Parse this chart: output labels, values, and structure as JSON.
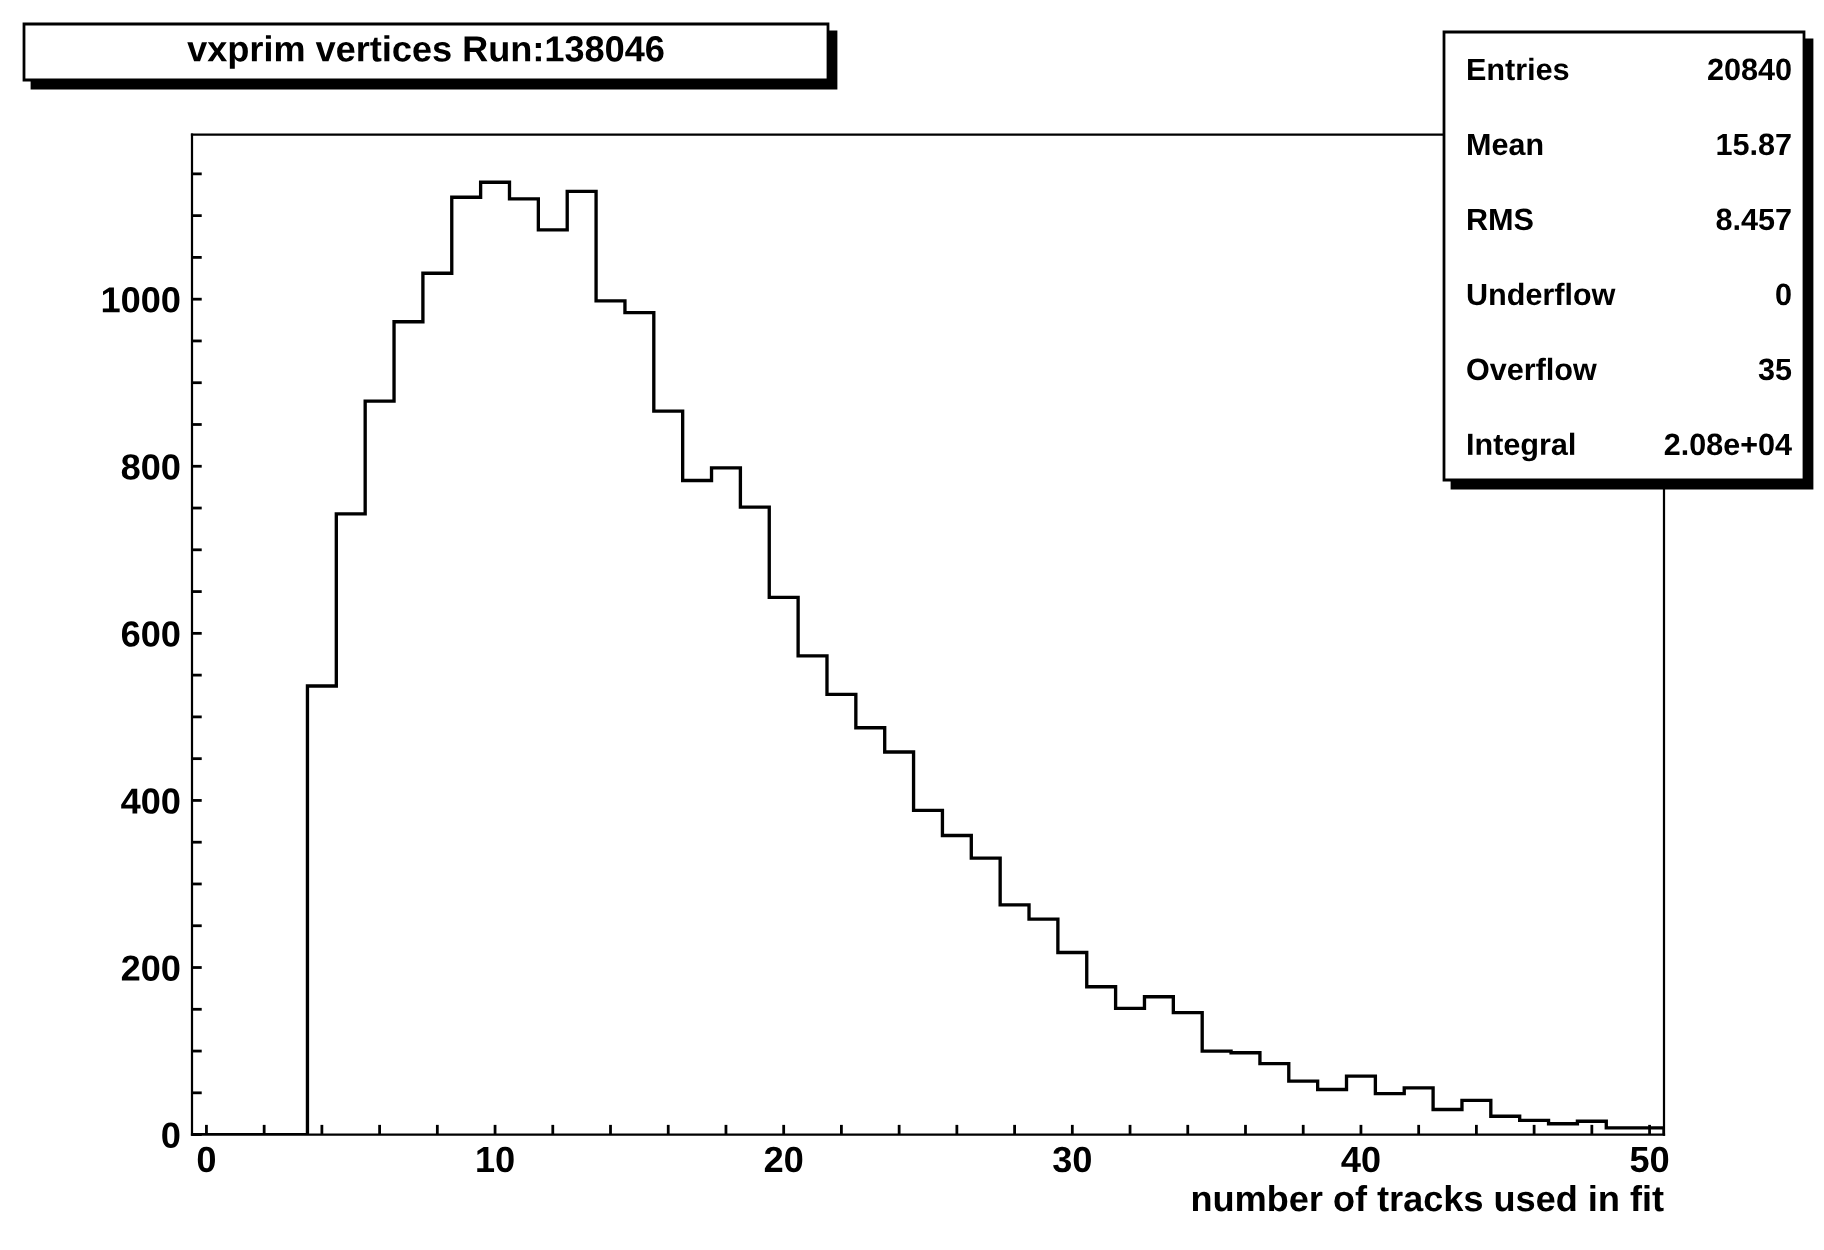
{
  "chart_data": {
    "type": "histogram",
    "title": "vxprim vertices Run:138046",
    "xlabel": "number of tracks used in fit",
    "bins": [
      -0.5,
      0.5,
      1.5,
      2.5,
      3.5,
      4.5,
      5.5,
      6.5,
      7.5,
      8.5,
      9.5,
      10.5,
      11.5,
      12.5,
      13.5,
      14.5,
      15.5,
      16.5,
      17.5,
      18.5,
      19.5,
      20.5,
      21.5,
      22.5,
      23.5,
      24.5,
      25.5,
      26.5,
      27.5,
      28.5,
      29.5,
      30.5,
      31.5,
      32.5,
      33.5,
      34.5,
      35.5,
      36.5,
      37.5,
      38.5,
      39.5,
      40.5,
      41.5,
      42.5,
      43.5,
      44.5,
      45.5,
      46.5,
      47.5,
      48.5,
      49.5,
      50.5
    ],
    "values": [
      0,
      0,
      0,
      0,
      537,
      743,
      878,
      973,
      1031,
      1122,
      1140,
      1120,
      1083,
      1129,
      998,
      984,
      866,
      783,
      798,
      751,
      643,
      573,
      527,
      487,
      458,
      388,
      358,
      331,
      275,
      258,
      218,
      177,
      151,
      165,
      146,
      100,
      98,
      85,
      64,
      54,
      70,
      49,
      56,
      30,
      41,
      22,
      17,
      13,
      16,
      8,
      8
    ],
    "color": "#000000",
    "xlim": [
      -0.5,
      50.5
    ],
    "ylim": [
      0,
      1197
    ],
    "xticks": [
      0,
      {
        "value": 2,
        "label": null
      },
      {
        "value": 4,
        "label": null
      },
      {
        "value": 6,
        "label": null
      },
      {
        "value": 8,
        "label": null
      },
      10,
      {
        "value": 12,
        "label": null
      },
      {
        "value": 14,
        "label": null
      },
      {
        "value": 16,
        "label": null
      },
      {
        "value": 18,
        "label": null
      },
      20,
      {
        "value": 22,
        "label": null
      },
      {
        "value": 24,
        "label": null
      },
      {
        "value": 26,
        "label": null
      },
      {
        "value": 28,
        "label": null
      },
      30,
      {
        "value": 32,
        "label": null
      },
      {
        "value": 34,
        "label": null
      },
      {
        "value": 36,
        "label": null
      },
      {
        "value": 38,
        "label": null
      },
      40,
      {
        "value": 42,
        "label": null
      },
      {
        "value": 44,
        "label": null
      },
      {
        "value": 46,
        "label": null
      },
      {
        "value": 48,
        "label": null
      },
      50
    ],
    "yticks": [
      0,
      {
        "value": 50,
        "label": null
      },
      {
        "value": 100,
        "label": null
      },
      {
        "value": 150,
        "label": null
      },
      200,
      {
        "value": 250,
        "label": null
      },
      {
        "value": 300,
        "label": null
      },
      {
        "value": 350,
        "label": null
      },
      400,
      {
        "value": 450,
        "label": null
      },
      {
        "value": 500,
        "label": null
      },
      {
        "value": 550,
        "label": null
      },
      600,
      {
        "value": 650,
        "label": null
      },
      {
        "value": 700,
        "label": null
      },
      {
        "value": 750,
        "label": null
      },
      800,
      {
        "value": 850,
        "label": null
      },
      {
        "value": 900,
        "label": null
      },
      {
        "value": 950,
        "label": null
      },
      1000,
      {
        "value": 1050,
        "label": null
      },
      {
        "value": 1100,
        "label": null
      },
      {
        "value": 1150,
        "label": null
      }
    ],
    "grid": false,
    "annotations": [
      "Entries",
      "20840",
      "Mean",
      "15.87",
      "RMS",
      "8.457",
      "Underflow",
      "0",
      "Overflow",
      "35",
      "Integral",
      "2.08e+04"
    ]
  }
}
